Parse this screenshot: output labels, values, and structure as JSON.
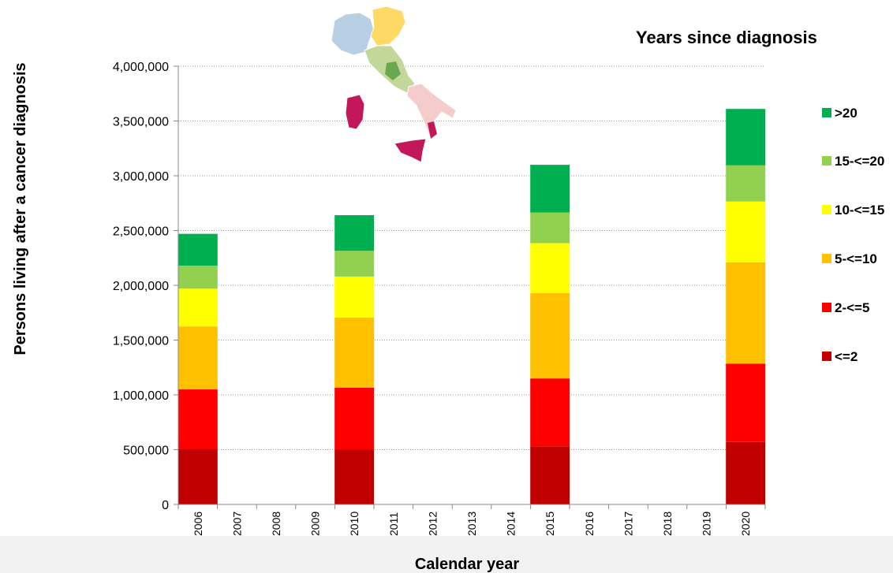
{
  "chart_data": {
    "type": "bar",
    "stacked": true,
    "title": "",
    "xlabel": "Calendar year",
    "ylabel": "Persons living after a cancer diagnosis",
    "legend_title": "Years since diagnosis",
    "legend_position": "right",
    "grid": true,
    "ylim": [
      0,
      4000000
    ],
    "yticks": [
      0,
      500000,
      1000000,
      1500000,
      2000000,
      2500000,
      3000000,
      3500000,
      4000000
    ],
    "ytick_labels": [
      "0",
      "500,000",
      "1,000,000",
      "1,500,000",
      "2,000,000",
      "2,500,000",
      "3,000,000",
      "3,500,000",
      "4,000,000"
    ],
    "categories": [
      "2006",
      "2007",
      "2008",
      "2009",
      "2010",
      "2011",
      "2012",
      "2013",
      "2014",
      "2015",
      "2016",
      "2017",
      "2018",
      "2019",
      "2020"
    ],
    "series": [
      {
        "name": "<=2",
        "color": "#c00000",
        "values": [
          510000,
          null,
          null,
          null,
          500000,
          null,
          null,
          null,
          null,
          530000,
          null,
          null,
          null,
          null,
          570000
        ]
      },
      {
        "name": "2-<=5",
        "color": "#ff0000",
        "values": [
          540000,
          null,
          null,
          null,
          565000,
          null,
          null,
          null,
          null,
          620000,
          null,
          null,
          null,
          null,
          715000
        ]
      },
      {
        "name": "5-<=10",
        "color": "#ffc000",
        "values": [
          575000,
          null,
          null,
          null,
          640000,
          null,
          null,
          null,
          null,
          780000,
          null,
          null,
          null,
          null,
          925000
        ]
      },
      {
        "name": "10-<=15",
        "color": "#ffff00",
        "values": [
          345000,
          null,
          null,
          null,
          375000,
          null,
          null,
          null,
          null,
          455000,
          null,
          null,
          null,
          null,
          555000
        ]
      },
      {
        "name": "15-<=20",
        "color": "#92d050",
        "values": [
          210000,
          null,
          null,
          null,
          235000,
          null,
          null,
          null,
          null,
          280000,
          null,
          null,
          null,
          null,
          330000
        ]
      },
      {
        "name": ">20",
        "color": "#00b050",
        "values": [
          290000,
          null,
          null,
          null,
          325000,
          null,
          null,
          null,
          null,
          435000,
          null,
          null,
          null,
          null,
          515000
        ]
      }
    ]
  },
  "map_image": {
    "icon": "italy-map-icon",
    "colors": {
      "north": "#b8cfe4",
      "northeast": "#ffd966",
      "center": "#c4d79b",
      "center_dark": "#6aa84f",
      "south": "#f4cccc",
      "islands": "#c2185b"
    }
  }
}
